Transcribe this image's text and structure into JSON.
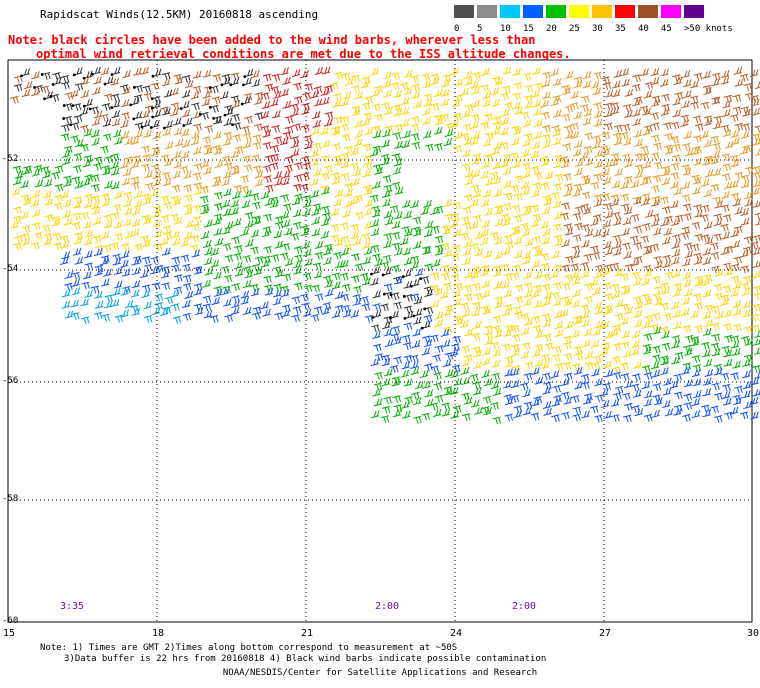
{
  "header": {
    "title": "Rapidscat Winds(12.5KM) 20160818 ascending",
    "note_line1": "Note: black circles have been added to the wind barbs, wherever less than",
    "note_line2": "optimal wind retrieval conditions are met due to the ISS altitude changes."
  },
  "legend": {
    "labels": [
      "0",
      "5",
      "10",
      "15",
      "20",
      "25",
      "30",
      "35",
      "40",
      "45",
      ">50 knots"
    ],
    "colors": [
      "#505050",
      "#8c8c8c",
      "#00c8ff",
      "#0060ff",
      "#00c000",
      "#ffff00",
      "#ffc000",
      "#ff0000",
      "#a05028",
      "#ff00ff",
      "#600090"
    ]
  },
  "map": {
    "lat_labels": [
      "-52",
      "-54",
      "-56",
      "-58",
      "-60"
    ],
    "lon_labels": [
      "15",
      "18",
      "21",
      "24",
      "27",
      "30"
    ],
    "time_labels": [
      "3:35",
      "2:00",
      "2:00"
    ]
  },
  "footer": {
    "line1": "Note: 1) Times are GMT 2)Times along bottom correspond to measurement at ~50S",
    "line2": "3)Data buffer is 22 hrs from 20160818 4) Black wind barbs indicate possible contamination",
    "credit": "NOAA/NESDIS/Center for Satellite Applications and Research"
  }
}
